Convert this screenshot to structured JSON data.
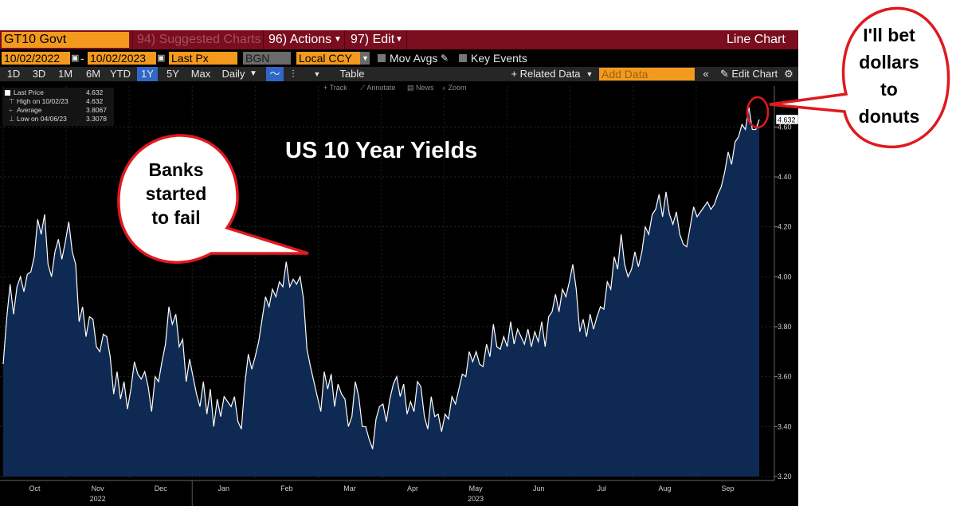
{
  "header": {
    "security": "GT10 Govt",
    "suggested": "94) Suggested Charts",
    "actions": "96) Actions",
    "edit": "97) Edit",
    "chart_type": "Line Chart"
  },
  "controls": {
    "start_date": "10/02/2022",
    "end_date": "10/02/2023",
    "dash": "-",
    "field": "Last Px",
    "source": "BGN",
    "currency": "Local CCY",
    "mov_avgs": "Mov Avgs",
    "key_events": "Key Events"
  },
  "toolbar": {
    "periods": [
      "1D",
      "3D",
      "1M",
      "6M",
      "YTD",
      "1Y",
      "5Y",
      "Max"
    ],
    "selected_period": "1Y",
    "frequency": "Daily",
    "table": "Table",
    "related": "+ Related Data",
    "add_data": "Add Data",
    "edit_chart": "Edit Chart",
    "track": "Track",
    "annotate": "Annotate",
    "news": "News",
    "zoom": "Zoom"
  },
  "legend": {
    "rows": [
      {
        "label": "Last Price",
        "value": "4.632"
      },
      {
        "label": "High on 10/02/23",
        "value": "4.632"
      },
      {
        "label": "Average",
        "value": "3.8067"
      },
      {
        "label": "Low on 04/06/23",
        "value": "3.3078"
      }
    ]
  },
  "colors": {
    "line": "#ffffff",
    "area": "#0e2a52",
    "header_bar": "#7a0e1f",
    "field_orange": "#f39a1e",
    "callout_border": "#e0191e"
  },
  "callouts": {
    "banks": [
      "Banks",
      "started",
      "to fail"
    ],
    "donuts": [
      "I'll bet",
      "dollars",
      "to",
      "donuts"
    ]
  },
  "chart_data": {
    "type": "area",
    "title": "US 10 Year Yields",
    "ylim": [
      3.2,
      4.7
    ],
    "yticks": [
      "3.20",
      "3.40",
      "3.60",
      "3.80",
      "4.00",
      "4.20",
      "4.40",
      "4.60"
    ],
    "months": [
      "Oct",
      "Nov",
      "Dec",
      "Jan",
      "Feb",
      "Mar",
      "Apr",
      "May",
      "Jun",
      "Jul",
      "Aug",
      "Sep"
    ],
    "years": [
      "2022",
      "2023"
    ],
    "last_value_label": "4.632",
    "grid": true,
    "legend_position": "top-left",
    "series": [
      {
        "values": [
          3.65,
          3.83,
          3.97,
          3.85,
          3.96,
          4.0,
          3.94,
          4.01,
          4.02,
          4.08,
          4.23,
          4.17,
          4.25,
          4.05,
          4.0,
          4.1,
          4.15,
          4.07,
          4.14,
          4.22,
          4.1,
          4.05,
          3.82,
          3.88,
          3.76,
          3.84,
          3.83,
          3.72,
          3.7,
          3.77,
          3.76,
          3.68,
          3.53,
          3.62,
          3.51,
          3.58,
          3.47,
          3.55,
          3.66,
          3.61,
          3.59,
          3.62,
          3.56,
          3.46,
          3.6,
          3.58,
          3.66,
          3.73,
          3.88,
          3.81,
          3.85,
          3.72,
          3.75,
          3.58,
          3.67,
          3.6,
          3.53,
          3.48,
          3.58,
          3.45,
          3.55,
          3.4,
          3.51,
          3.44,
          3.52,
          3.5,
          3.48,
          3.52,
          3.42,
          3.39,
          3.57,
          3.69,
          3.63,
          3.68,
          3.74,
          3.83,
          3.92,
          3.88,
          3.95,
          3.92,
          3.98,
          3.96,
          4.06,
          3.96,
          3.99,
          3.97,
          4.0,
          3.91,
          3.71,
          3.64,
          3.58,
          3.52,
          3.46,
          3.62,
          3.55,
          3.61,
          3.48,
          3.57,
          3.53,
          3.51,
          3.4,
          3.44,
          3.58,
          3.52,
          3.4,
          3.4,
          3.35,
          3.31,
          3.43,
          3.48,
          3.49,
          3.42,
          3.51,
          3.57,
          3.6,
          3.52,
          3.57,
          3.45,
          3.5,
          3.46,
          3.58,
          3.56,
          3.44,
          3.39,
          3.52,
          3.44,
          3.45,
          3.38,
          3.45,
          3.43,
          3.52,
          3.49,
          3.55,
          3.61,
          3.6,
          3.7,
          3.66,
          3.7,
          3.65,
          3.64,
          3.73,
          3.68,
          3.81,
          3.72,
          3.71,
          3.76,
          3.72,
          3.82,
          3.73,
          3.79,
          3.76,
          3.73,
          3.79,
          3.72,
          3.78,
          3.74,
          3.82,
          3.72,
          3.84,
          3.86,
          3.93,
          3.86,
          3.95,
          3.92,
          3.98,
          4.05,
          3.95,
          3.78,
          3.83,
          3.76,
          3.85,
          3.79,
          3.84,
          3.88,
          3.87,
          3.98,
          3.95,
          4.08,
          4.03,
          4.17,
          4.05,
          4.0,
          4.03,
          4.1,
          4.04,
          4.1,
          4.2,
          4.17,
          4.25,
          4.27,
          4.33,
          4.24,
          4.34,
          4.25,
          4.21,
          4.26,
          4.17,
          4.13,
          4.12,
          4.2,
          4.28,
          4.24,
          4.26,
          4.28,
          4.3,
          4.27,
          4.29,
          4.33,
          4.36,
          4.42,
          4.5,
          4.45,
          4.54,
          4.56,
          4.61,
          4.59,
          4.68,
          4.59,
          4.59,
          4.63
        ]
      }
    ]
  }
}
